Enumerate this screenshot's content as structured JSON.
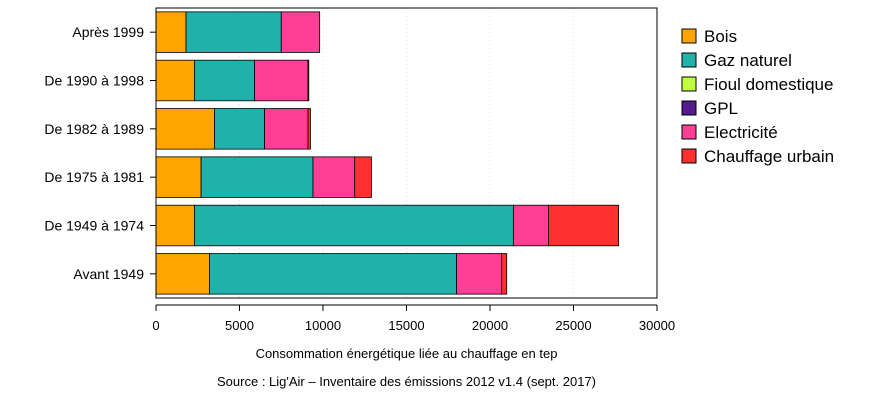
{
  "chart_data": {
    "type": "bar",
    "orientation": "horizontal",
    "stacked": true,
    "categories": [
      "Après 1999",
      "De 1990 à 1998",
      "De 1982 à 1989",
      "De 1975 à 1981",
      "De 1949 à 1974",
      "Avant 1949"
    ],
    "series": [
      {
        "name": "Bois",
        "color": "#FFA500",
        "values": [
          1800,
          2300,
          3500,
          2700,
          2300,
          3200
        ]
      },
      {
        "name": "Gaz naturel",
        "color": "#20B2AA",
        "values": [
          5700,
          3600,
          3000,
          6700,
          19100,
          14800
        ]
      },
      {
        "name": "Fioul domestique",
        "color": "#C0FF3E",
        "values": [
          0,
          0,
          0,
          0,
          0,
          0
        ]
      },
      {
        "name": "GPL",
        "color": "#551A8B",
        "values": [
          0,
          0,
          0,
          0,
          0,
          0
        ]
      },
      {
        "name": "Electricité",
        "color": "#FF3E96",
        "values": [
          2300,
          3200,
          2600,
          2500,
          2100,
          2700
        ]
      },
      {
        "name": "Chauffage urbain",
        "color": "#FF3030",
        "values": [
          0,
          50,
          150,
          1000,
          4200,
          300
        ]
      }
    ],
    "xlabel": "Consommation énergétique liée au chauffage en tep",
    "caption": "Source : Lig'Air – Inventaire des émissions 2012 v1.4 (sept. 2017)",
    "xlim": [
      0,
      30000
    ],
    "x_ticks": [
      0,
      5000,
      10000,
      15000,
      20000,
      25000,
      30000
    ],
    "x_tick_labels": [
      "0",
      "5000",
      "10000",
      "15000",
      "20000",
      "25000",
      "30000"
    ],
    "grid": "vertical dotted",
    "legend": "right"
  }
}
